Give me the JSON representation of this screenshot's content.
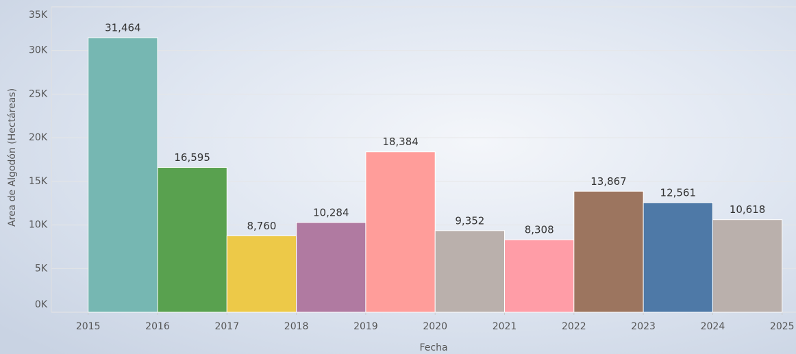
{
  "chart_data": {
    "type": "histogram",
    "x_label": "Fecha",
    "y_label": "Area de Algodón (Hectáreas)",
    "bins": [
      2015,
      2016,
      2017,
      2018,
      2019,
      2020,
      2021,
      2022,
      2023,
      2024,
      2025
    ],
    "values": [
      31464,
      16595,
      8760,
      10284,
      18384,
      9352,
      8308,
      13867,
      12561,
      10618
    ],
    "value_labels": [
      "31,464",
      "16,595",
      "8,760",
      "10,284",
      "18,384",
      "9,352",
      "8,308",
      "13,867",
      "12,561",
      "10,618"
    ],
    "colors": [
      "#76b7b2",
      "#59a14f",
      "#edc948",
      "#b07aa1",
      "#ff9d9a",
      "#bab0ac",
      "#ff9da7",
      "#9c755f",
      "#4e79a7",
      "#bab0ac"
    ],
    "xlim": [
      2014.47,
      2025.2
    ],
    "xticks": [
      2015,
      2016,
      2017,
      2018,
      2019,
      2020,
      2021,
      2022,
      2023,
      2024,
      2025
    ],
    "ylim": [
      0,
      35000
    ],
    "yticks": [
      {
        "value": 0,
        "label": "0K"
      },
      {
        "value": 5000,
        "label": "5K"
      },
      {
        "value": 10000,
        "label": "10K"
      },
      {
        "value": 15000,
        "label": "15K"
      },
      {
        "value": 20000,
        "label": "20K"
      },
      {
        "value": 25000,
        "label": "25K"
      },
      {
        "value": 30000,
        "label": "30K"
      },
      {
        "value": 35000,
        "label": "35K"
      }
    ],
    "grid": true
  }
}
